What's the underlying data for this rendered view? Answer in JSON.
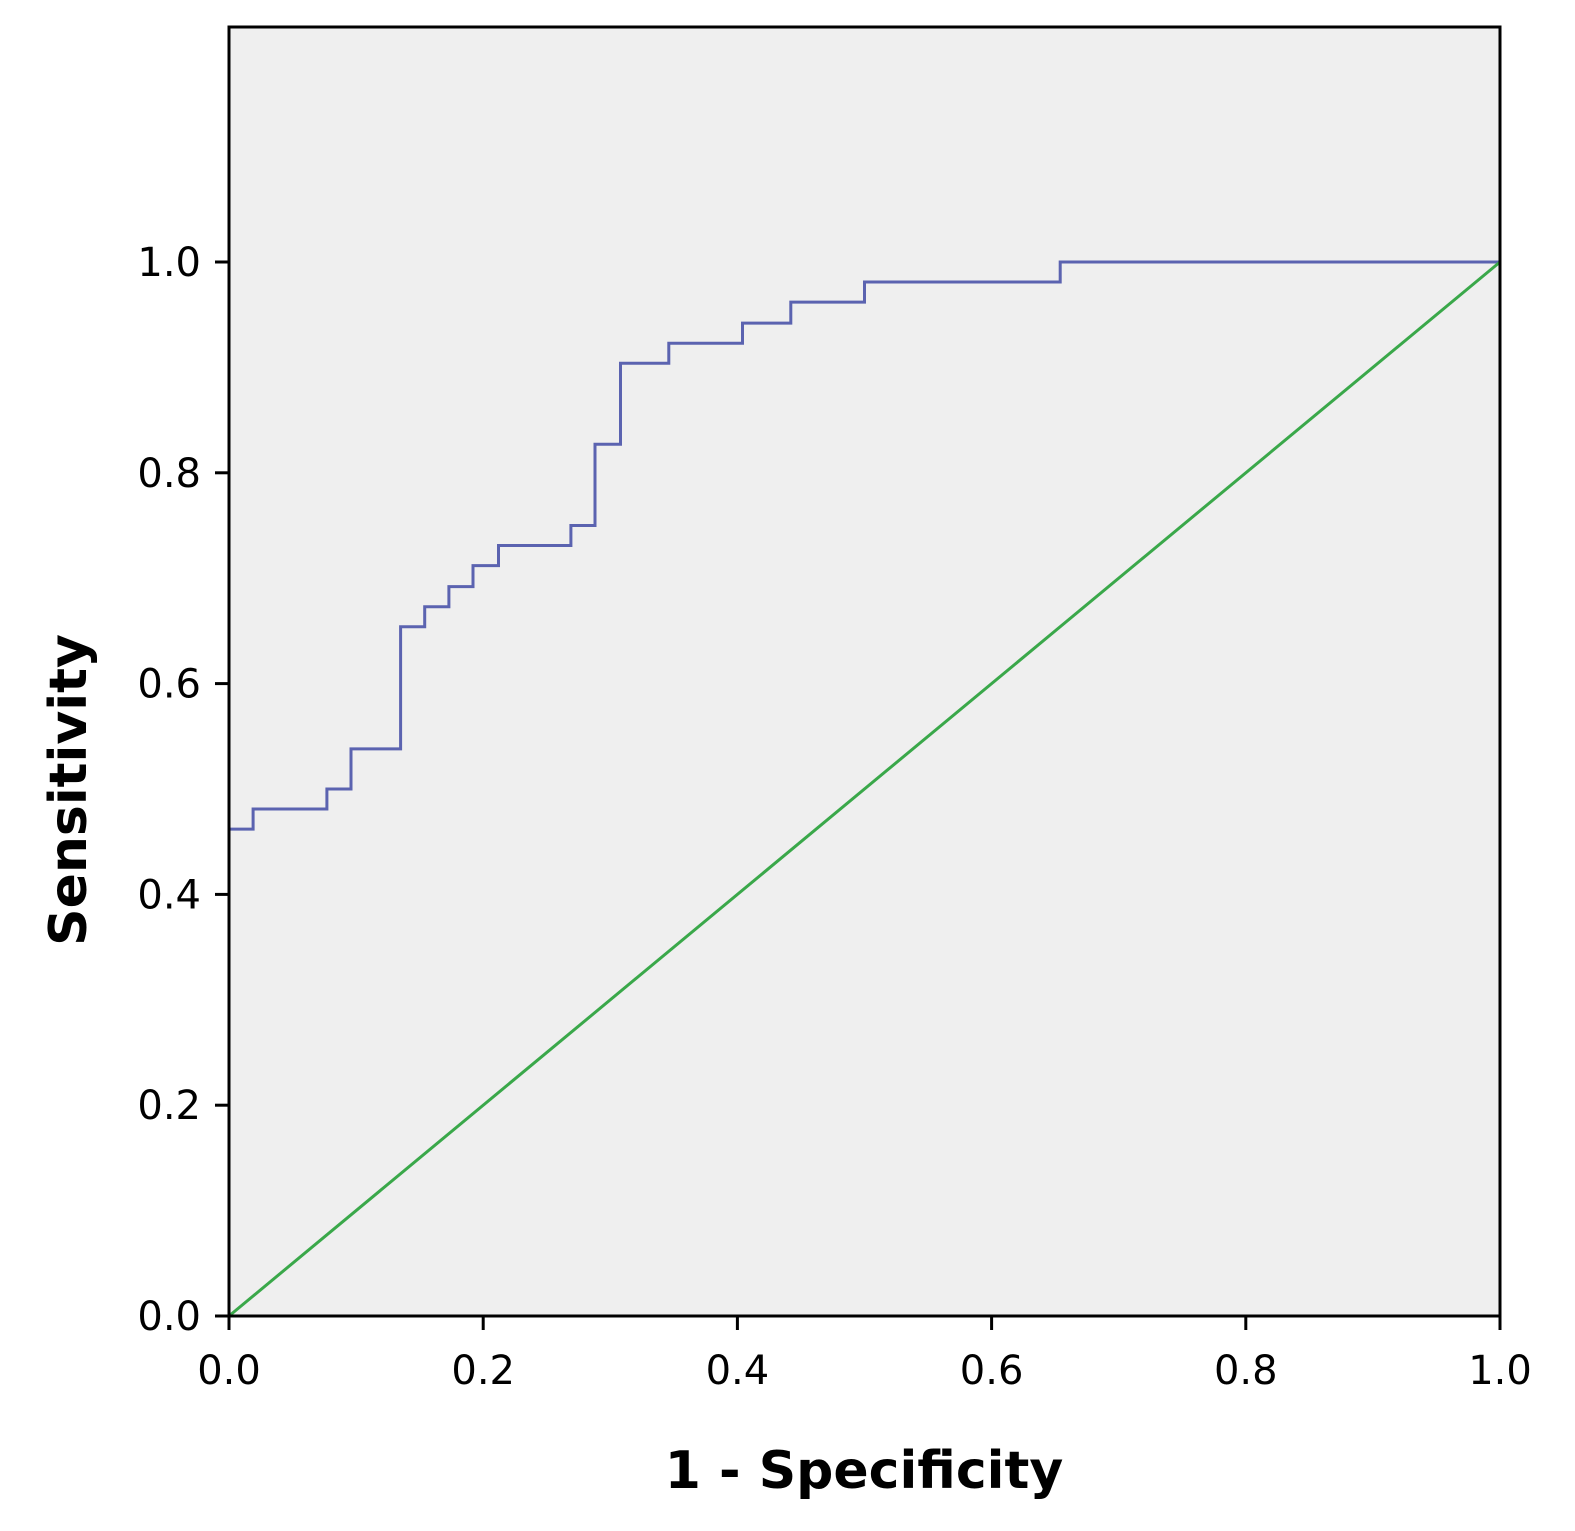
{
  "chart_data": {
    "type": "line",
    "xlabel": "1 - Specificity",
    "ylabel": "Sensitivity",
    "xlim": [
      0.0,
      1.0
    ],
    "ylim": [
      0.0,
      1.22
    ],
    "x_ticks": [
      0.0,
      0.2,
      0.4,
      0.6,
      0.8,
      1.0
    ],
    "x_tick_labels": [
      "0.0",
      "0.2",
      "0.4",
      "0.6",
      "0.8",
      "1.0"
    ],
    "y_ticks": [
      0.0,
      0.2,
      0.4,
      0.6,
      0.8,
      1.0
    ],
    "y_tick_labels": [
      "0.0",
      "0.2",
      "0.4",
      "0.6",
      "0.8",
      "1.0"
    ],
    "grid": false,
    "plot_background": "#efefef",
    "series": [
      {
        "color": "#5b63b0",
        "step": true,
        "x": [
          0.0,
          0.0,
          0.019,
          0.019,
          0.077,
          0.077,
          0.096,
          0.096,
          0.135,
          0.135,
          0.154,
          0.154,
          0.173,
          0.173,
          0.192,
          0.192,
          0.212,
          0.212,
          0.269,
          0.269,
          0.288,
          0.288,
          0.308,
          0.308,
          0.346,
          0.346,
          0.404,
          0.404,
          0.442,
          0.442,
          0.5,
          0.5,
          0.654,
          0.654,
          1.0
        ],
        "y": [
          0.0,
          0.462,
          0.462,
          0.481,
          0.481,
          0.5,
          0.5,
          0.538,
          0.538,
          0.654,
          0.654,
          0.673,
          0.673,
          0.692,
          0.692,
          0.712,
          0.712,
          0.731,
          0.731,
          0.75,
          0.75,
          0.827,
          0.827,
          0.904,
          0.904,
          0.923,
          0.923,
          0.942,
          0.942,
          0.962,
          0.962,
          0.981,
          0.981,
          1.0,
          1.0
        ]
      },
      {
        "color": "#3aa84a",
        "step": false,
        "x": [
          0.0,
          1.0
        ],
        "y": [
          0.0,
          1.0
        ]
      }
    ]
  }
}
